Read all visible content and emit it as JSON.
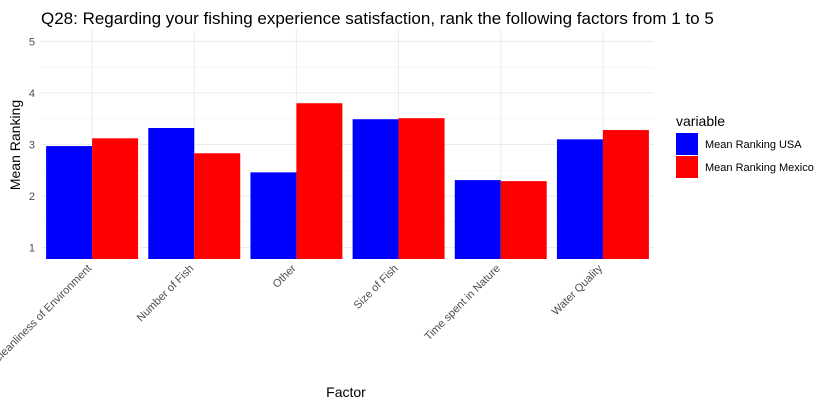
{
  "chart_data": {
    "type": "bar",
    "title": "Q28: Regarding your fishing experience satisfaction, rank the following factors from 1 to 5",
    "xlabel": "Factor",
    "ylabel": "Mean Ranking",
    "categories": [
      "Cleanliness of Environment",
      "Number of Fish",
      "Other",
      "Size of Fish",
      "Time spent in Nature",
      "Water Quality"
    ],
    "series": [
      {
        "name": "Mean Ranking USA",
        "color": "#0000ff",
        "values": [
          2.97,
          3.32,
          2.46,
          3.49,
          2.31,
          3.1
        ]
      },
      {
        "name": "Mean Ranking Mexico",
        "color": "#ff0000",
        "values": [
          3.12,
          2.83,
          3.8,
          3.51,
          2.29,
          3.28
        ]
      }
    ],
    "ylim": [
      0.78,
      5.22
    ],
    "bar_base": 0.78,
    "yticks": [
      "1",
      "2",
      "3",
      "4",
      "5"
    ],
    "grid": true,
    "legend": {
      "title": "variable",
      "placement": "right"
    }
  }
}
